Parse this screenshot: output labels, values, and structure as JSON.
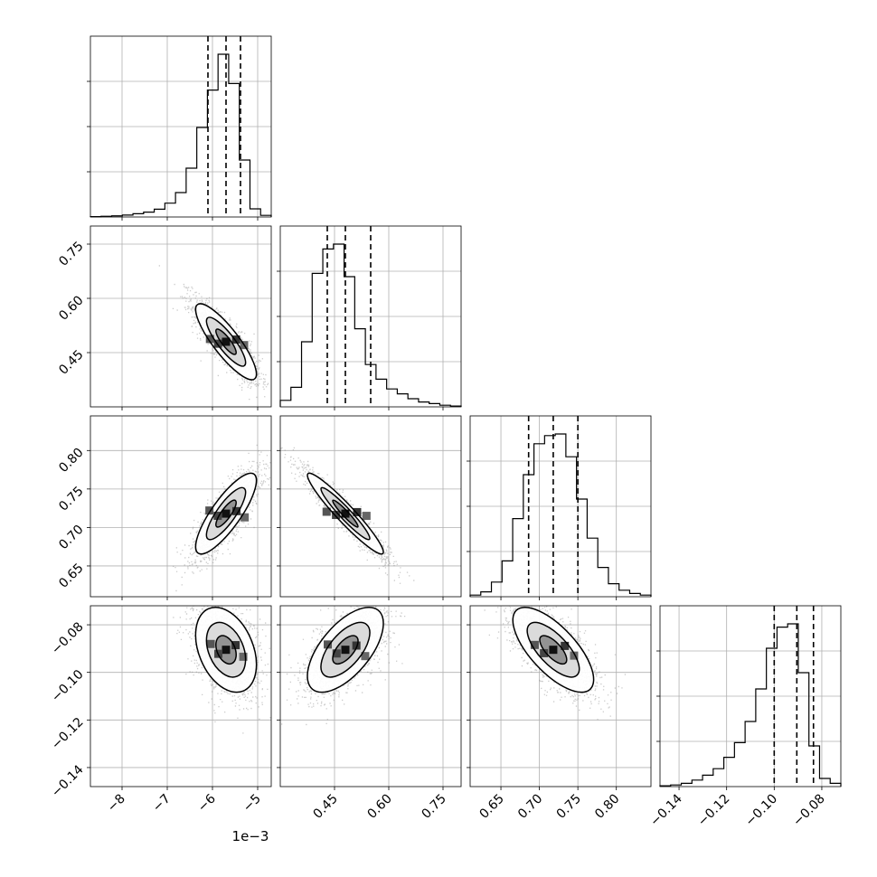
{
  "chart_data": {
    "type": "corner",
    "offset_text": "1e−3",
    "parameters": [
      {
        "range": [
          -8.7,
          -4.7
        ],
        "ticks": [
          -8,
          -7,
          -6,
          -5
        ],
        "tick_labels": [
          "−8",
          "−7",
          "−6",
          "−5"
        ],
        "median": -5.7,
        "quantiles": [
          -6.1,
          -5.38
        ],
        "hist_y": [
          0.002,
          0.004,
          0.007,
          0.012,
          0.02,
          0.03,
          0.048,
          0.085,
          0.15,
          0.3,
          0.55,
          0.78,
          1.0,
          0.82,
          0.35,
          0.05,
          0.01
        ]
      },
      {
        "range": [
          0.3,
          0.8
        ],
        "ticks": [
          0.45,
          0.6,
          0.75
        ],
        "tick_labels": [
          "0.45",
          "0.60",
          "0.75"
        ],
        "median": 0.48,
        "quantiles": [
          0.43,
          0.55
        ],
        "hist_y": [
          0.04,
          0.12,
          0.4,
          0.82,
          0.97,
          1.0,
          0.8,
          0.48,
          0.26,
          0.17,
          0.11,
          0.08,
          0.05,
          0.03,
          0.02,
          0.01,
          0.005
        ]
      },
      {
        "range": [
          0.61,
          0.845
        ],
        "ticks": [
          0.65,
          0.7,
          0.75,
          0.8
        ],
        "tick_labels": [
          "0.65",
          "0.70",
          "0.75",
          "0.80"
        ],
        "median": 0.718,
        "quantiles": [
          0.686,
          0.75
        ],
        "hist_y": [
          0.01,
          0.03,
          0.09,
          0.22,
          0.48,
          0.75,
          0.94,
          0.99,
          1.0,
          0.86,
          0.6,
          0.36,
          0.18,
          0.08,
          0.04,
          0.02,
          0.01
        ]
      },
      {
        "range": [
          -0.148,
          -0.072
        ],
        "ticks": [
          -0.14,
          -0.12,
          -0.1,
          -0.08
        ],
        "tick_labels": [
          "−0.14",
          "−0.12",
          "−0.10",
          "−0.08"
        ],
        "median": -0.0905,
        "quantiles": [
          -0.1,
          -0.0835
        ],
        "hist_y": [
          0.005,
          0.01,
          0.02,
          0.04,
          0.07,
          0.11,
          0.18,
          0.27,
          0.4,
          0.6,
          0.85,
          0.98,
          1.0,
          0.7,
          0.25,
          0.05,
          0.02
        ]
      }
    ],
    "pairs": [
      {
        "row": 1,
        "col": 0,
        "mean": [
          -5.7,
          0.48
        ],
        "sd": [
          0.32,
          0.05
        ],
        "corr": -0.85
      },
      {
        "row": 2,
        "col": 0,
        "mean": [
          -5.7,
          0.718
        ],
        "sd": [
          0.32,
          0.025
        ],
        "corr": 0.82
      },
      {
        "row": 2,
        "col": 1,
        "mean": [
          0.48,
          0.718
        ],
        "sd": [
          0.05,
          0.025
        ],
        "corr": -0.95
      },
      {
        "row": 3,
        "col": 0,
        "mean": [
          -5.7,
          -0.0905
        ],
        "sd": [
          0.32,
          0.0085
        ],
        "corr": -0.35
      },
      {
        "row": 3,
        "col": 1,
        "mean": [
          0.48,
          -0.0905
        ],
        "sd": [
          0.05,
          0.0085
        ],
        "corr": 0.62
      },
      {
        "row": 3,
        "col": 2,
        "mean": [
          0.718,
          -0.0905
        ],
        "sd": [
          0.025,
          0.0085
        ],
        "corr": -0.7
      }
    ]
  }
}
